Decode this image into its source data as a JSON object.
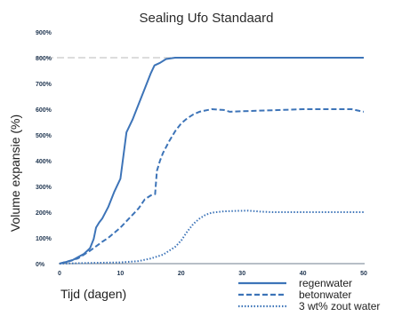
{
  "chart_data": {
    "type": "line",
    "title": "Sealing Ufo Standaard",
    "xlabel": "Tijd (dagen)",
    "ylabel": "Volume expansie (%)",
    "xlim": [
      0,
      50
    ],
    "ylim": [
      0,
      900
    ],
    "x_ticks": [
      "0",
      "10",
      "20",
      "30",
      "40",
      "50"
    ],
    "y_ticks": [
      "0%",
      "100%",
      "200%",
      "300%",
      "400%",
      "500%",
      "600%",
      "700%",
      "800%",
      "900%"
    ],
    "grid": false,
    "legend_position": "bottom-right",
    "series": [
      {
        "name": "regenwater",
        "style": "solid",
        "color": "#3d74b8",
        "points": [
          [
            0,
            0
          ],
          [
            2,
            12
          ],
          [
            4,
            38
          ],
          [
            5,
            60
          ],
          [
            5.6,
            95
          ],
          [
            6,
            140
          ],
          [
            6.5,
            160
          ],
          [
            7,
            175
          ],
          [
            8,
            220
          ],
          [
            9,
            280
          ],
          [
            10,
            330
          ],
          [
            10.5,
            420
          ],
          [
            11,
            510
          ],
          [
            12,
            560
          ],
          [
            13,
            620
          ],
          [
            14,
            680
          ],
          [
            15,
            740
          ],
          [
            15.6,
            770
          ],
          [
            16.5,
            780
          ],
          [
            17.5,
            795
          ],
          [
            19,
            800
          ],
          [
            25,
            800
          ],
          [
            30,
            800
          ],
          [
            35,
            800
          ],
          [
            40,
            800
          ],
          [
            45,
            800
          ],
          [
            50,
            800
          ]
        ]
      },
      {
        "name": "betonwater",
        "style": "dashed",
        "color": "#3d74b8",
        "points": [
          [
            0,
            0
          ],
          [
            3,
            20
          ],
          [
            5,
            50
          ],
          [
            7,
            85
          ],
          [
            8,
            100
          ],
          [
            10,
            140
          ],
          [
            11,
            165
          ],
          [
            12,
            190
          ],
          [
            13,
            215
          ],
          [
            14,
            250
          ],
          [
            15,
            265
          ],
          [
            15.7,
            270
          ],
          [
            16,
            360
          ],
          [
            16.5,
            400
          ],
          [
            17,
            430
          ],
          [
            18,
            475
          ],
          [
            19,
            515
          ],
          [
            20,
            545
          ],
          [
            21,
            565
          ],
          [
            22,
            580
          ],
          [
            23,
            590
          ],
          [
            25,
            600
          ],
          [
            27,
            597
          ],
          [
            28,
            590
          ],
          [
            30,
            592
          ],
          [
            35,
            596
          ],
          [
            40,
            600
          ],
          [
            45,
            600
          ],
          [
            48,
            600
          ],
          [
            50,
            590
          ]
        ]
      },
      {
        "name": "3 wt% zout water",
        "style": "dotted",
        "color": "#3d74b8",
        "points": [
          [
            0,
            0
          ],
          [
            6,
            3
          ],
          [
            10,
            5
          ],
          [
            13,
            10
          ],
          [
            15,
            20
          ],
          [
            17,
            35
          ],
          [
            18,
            50
          ],
          [
            19,
            65
          ],
          [
            20,
            90
          ],
          [
            21,
            125
          ],
          [
            22,
            155
          ],
          [
            23,
            175
          ],
          [
            24,
            190
          ],
          [
            25,
            198
          ],
          [
            27,
            203
          ],
          [
            29,
            205
          ],
          [
            31,
            206
          ],
          [
            33,
            202
          ],
          [
            35,
            200
          ],
          [
            40,
            200
          ],
          [
            45,
            200
          ],
          [
            50,
            200
          ]
        ]
      }
    ],
    "reference_line": {
      "label": "800%",
      "value": 800,
      "color": "#c8c8c8"
    }
  }
}
